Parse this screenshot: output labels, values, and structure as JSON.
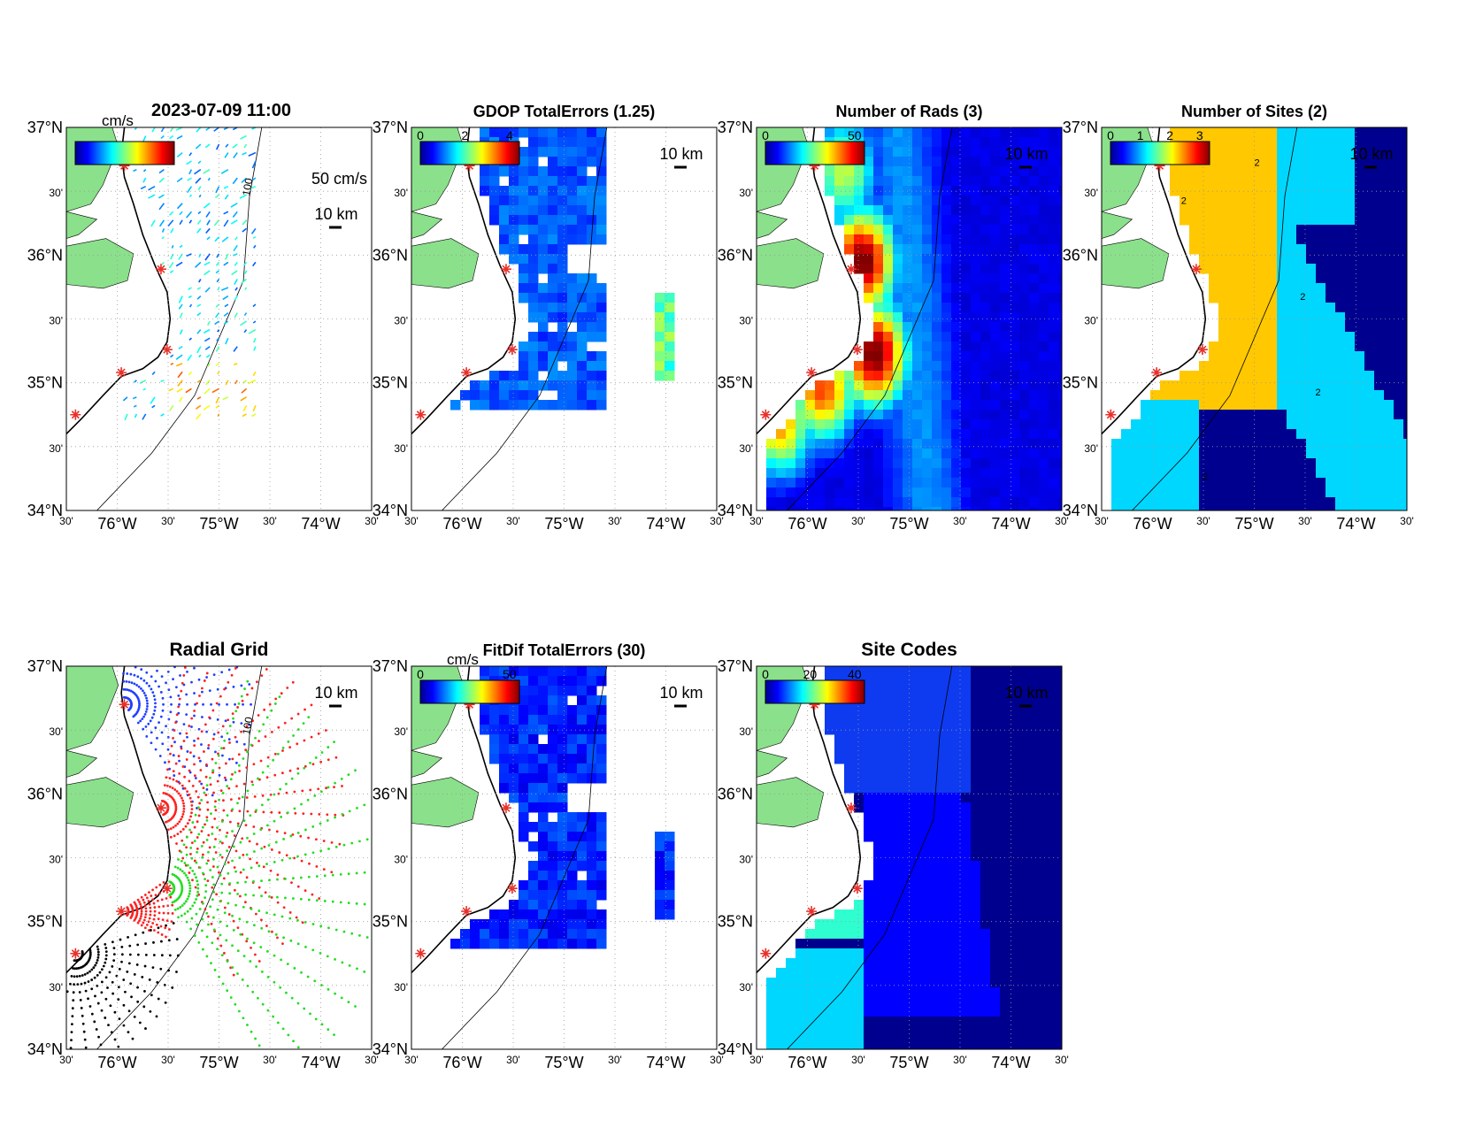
{
  "figure": {
    "timestamp": "2023-07-09 11:00",
    "unit_label": "cm/s",
    "ticks": {
      "lat": [
        "37°N",
        "30'",
        "36°N",
        "30'",
        "35°N",
        "30'",
        "34°N"
      ],
      "lon": [
        "30'",
        "76°W",
        "30'",
        "75°W",
        "30'",
        "74°W",
        "30'"
      ]
    },
    "scale_km": "10 km",
    "vector_scale": "50 cm/s",
    "isobath_label": "100",
    "colors": {
      "land": "#8be08b",
      "coast": "#000000",
      "site_marker": "#e8312a"
    }
  },
  "panels": [
    {
      "id": "vectors",
      "title": "",
      "colorbar_ticks": [],
      "colorbar_unit": "cm/s"
    },
    {
      "id": "gdop",
      "title": "GDOP TotalErrors (1.25)",
      "colorbar_ticks": [
        "0",
        "2",
        "4"
      ]
    },
    {
      "id": "nrads",
      "title": "Number of Rads (3)",
      "colorbar_ticks": [
        "0",
        "50"
      ]
    },
    {
      "id": "nsites",
      "title": "Number of Sites (2)",
      "colorbar_ticks": [
        "0",
        "1",
        "2",
        "3"
      ],
      "contour_label": "2"
    },
    {
      "id": "radgrid",
      "title": "Radial Grid",
      "colorbar_ticks": []
    },
    {
      "id": "fitdif",
      "title": "FitDif TotalErrors (30)",
      "colorbar_ticks": [
        "0",
        "50"
      ],
      "colorbar_unit": "cm/s"
    },
    {
      "id": "sitecodes",
      "title": "Site Codes",
      "colorbar_ticks": [
        "0",
        "20",
        "40"
      ]
    }
  ],
  "radial_sites": [
    {
      "color": "#1f3fff"
    },
    {
      "color": "#ff2020"
    },
    {
      "color": "#22dd22"
    },
    {
      "color": "#ff2020"
    },
    {
      "color": "#000000"
    }
  ]
}
